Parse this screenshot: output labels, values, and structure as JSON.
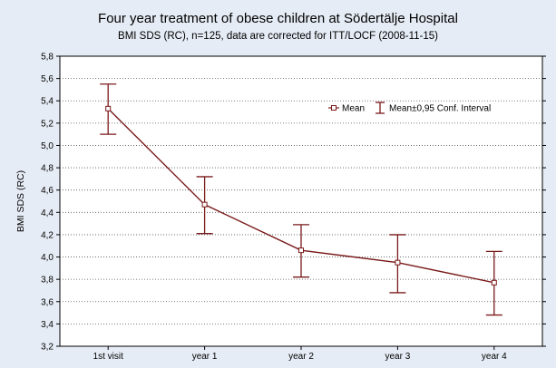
{
  "chart_data": {
    "type": "line",
    "title": "Four year treatment of obese children at Södertälje Hospital",
    "subtitle": "BMI SDS (RC), n=125, data are corrected for ITT/LOCF (2008-11-15)",
    "xlabel": "",
    "ylabel": "BMI SDS (RC)",
    "categories": [
      "1st visit",
      "year 1",
      "year 2",
      "year 3",
      "year 4"
    ],
    "ylim": [
      3.2,
      5.8
    ],
    "yticks": [
      "3,2",
      "3,4",
      "3,6",
      "3,8",
      "4,0",
      "4,2",
      "4,4",
      "4,6",
      "4,8",
      "5,0",
      "5,2",
      "5,4",
      "5,6",
      "5,8"
    ],
    "ytick_values": [
      3.2,
      3.4,
      3.6,
      3.8,
      4.0,
      4.2,
      4.4,
      4.6,
      4.8,
      5.0,
      5.2,
      5.4,
      5.6,
      5.8
    ],
    "series": [
      {
        "name": "Mean",
        "values": [
          5.33,
          4.47,
          4.06,
          3.95,
          3.77
        ],
        "ci_low": [
          5.1,
          4.21,
          3.82,
          3.68,
          3.48
        ],
        "ci_high": [
          5.55,
          4.72,
          4.29,
          4.2,
          4.05
        ]
      }
    ],
    "legend": {
      "placement": "top-right",
      "mean_label": "Mean",
      "ci_label": "Mean±0,95 Conf. Interval"
    },
    "grid": "horizontal-dotted",
    "colors": {
      "series": "#7a1a1a",
      "plot_bg": "#ffffff",
      "page_bg": "#e6ecf5",
      "grid": "#555555"
    }
  }
}
